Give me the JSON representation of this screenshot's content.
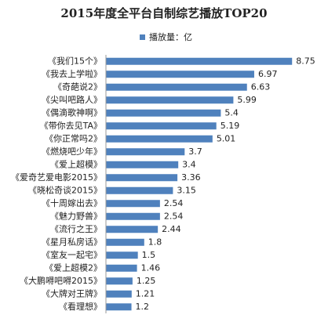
{
  "chart_data": {
    "type": "hbar",
    "title": "2015年度全平台自制综艺播放TOP20",
    "categories": [
      "《我们15个》",
      "《我去上学啦》",
      "《奇葩说2》",
      "《尖叫吧路人》",
      "《偶滴歌神啊》",
      "《带你去见TA》",
      "《你正常吗2》",
      "《燃烧吧少年》",
      "《爱上超模》",
      "《爱奇艺爱电影2015》",
      "《晓松奇谈2015》",
      "《十周嫁出去》",
      "《魅力野兽》",
      "《流行之王》",
      "《星月私房话》",
      "《室友一起宅》",
      "《爱上超模2》",
      "《大鹏嘚吧嘚2015》",
      "《大牌对王牌》",
      "《看理想》"
    ],
    "series": [
      {
        "name": "播放量：亿",
        "color": "#4f81bd",
        "values": [
          8.75,
          6.97,
          6.63,
          5.99,
          5.4,
          5.19,
          5.01,
          3.7,
          3.4,
          3.36,
          3.15,
          2.54,
          2.54,
          2.44,
          1.8,
          1.5,
          1.46,
          1.25,
          1.21,
          1.2
        ]
      }
    ],
    "xlim": [
      0,
      9
    ]
  }
}
